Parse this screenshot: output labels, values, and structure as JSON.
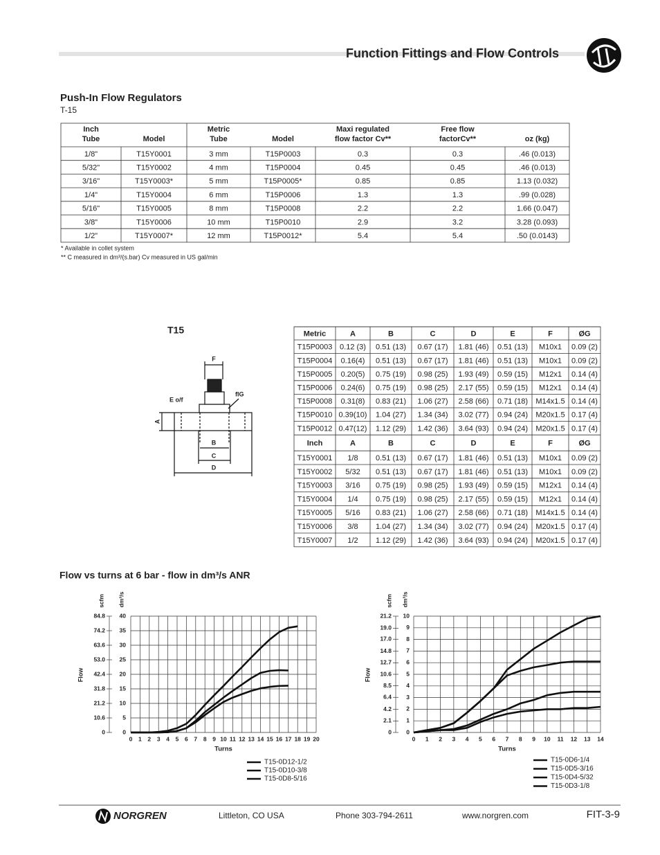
{
  "header": {
    "title": "Function Fittings and Flow Controls"
  },
  "section": {
    "title": "Push-In Flow Regulators",
    "subtitle": "T-15"
  },
  "table1": {
    "header": [
      [
        "Inch",
        "Tube"
      ],
      [
        "Model"
      ],
      [
        "Metric",
        "Tube"
      ],
      [
        "Model"
      ],
      [
        "Maxi regulated",
        "flow factor Cv**"
      ],
      [
        "Free flow",
        "factorCv**"
      ],
      [
        "oz (kg)"
      ]
    ],
    "rows": [
      [
        "1/8\"",
        "T15Y0001",
        "3 mm",
        "T15P0003",
        "0.3",
        "0.3",
        ".46 (0.013)"
      ],
      [
        "5/32\"",
        "T15Y0002",
        "4 mm",
        "T15P0004",
        "0.45",
        "0.45",
        ".46 (0.013)"
      ],
      [
        "3/16\"",
        "T15Y0003*",
        "5 mm",
        "T15P0005*",
        "0.85",
        "0.85",
        "1.13 (0.032)"
      ],
      [
        "1/4\"",
        "T15Y0004",
        "6 mm",
        "T15P0006",
        "1.3",
        "1.3",
        ".99 (0.028)"
      ],
      [
        "5/16\"",
        "T15Y0005",
        "8 mm",
        "T15P0008",
        "2.2",
        "2.2",
        "1.66 (0.047)"
      ],
      [
        "3/8\"",
        "T15Y0006",
        "10 mm",
        "T15P0010",
        "2.9",
        "3.2",
        "3.28 (0.093)"
      ],
      [
        "1/2\"",
        "T15Y0007*",
        "12 mm",
        "T15P0012*",
        "5.4",
        "5.4",
        ".50 (0.0143)"
      ]
    ]
  },
  "notes": [
    "* Available in collet system",
    "** C  measured in dm³/(s.bar) Cv measured in US gal/min"
  ],
  "diagram": {
    "title": "T15",
    "labels": [
      "F",
      "E o/f",
      "fIG",
      "A",
      "B",
      "C",
      "D"
    ]
  },
  "table2": {
    "metric_header": [
      "Metric",
      "A",
      "B",
      "C",
      "D",
      "E",
      "F",
      "ØG"
    ],
    "metric_rows": [
      [
        "T15P0003",
        "0.12 (3)",
        "0.51 (13)",
        "0.67 (17)",
        "1.81 (46)",
        "0.51 (13)",
        "M10x1",
        "0.09 (2)"
      ],
      [
        "T15P0004",
        "0.16(4)",
        "0.51 (13)",
        "0.67 (17)",
        "1.81 (46)",
        "0.51 (13)",
        "M10x1",
        "0.09 (2)"
      ],
      [
        "T15P0005",
        "0.20(5)",
        "0.75 (19)",
        "0.98 (25)",
        "1.93 (49)",
        "0.59 (15)",
        "M12x1",
        "0.14 (4)"
      ],
      [
        "T15P0006",
        "0.24(6)",
        "0.75 (19)",
        "0.98 (25)",
        "2.17 (55)",
        "0.59 (15)",
        "M12x1",
        "0.14 (4)"
      ],
      [
        "T15P0008",
        "0.31(8)",
        "0.83 (21)",
        "1.06 (27)",
        "2.58 (66)",
        "0.71 (18)",
        "M14x1.5",
        "0.14 (4)"
      ],
      [
        "T15P0010",
        "0.39(10)",
        "1.04 (27)",
        "1.34 (34)",
        "3.02 (77)",
        "0.94 (24)",
        "M20x1.5",
        "0.17 (4)"
      ],
      [
        "T15P0012",
        "0.47(12)",
        "1.12 (29)",
        "1.42 (36)",
        "3.64 (93)",
        "0.94 (24)",
        "M20x1.5",
        "0.17 (4)"
      ]
    ],
    "inch_header": [
      "Inch",
      "A",
      "B",
      "C",
      "D",
      "E",
      "F",
      "ØG"
    ],
    "inch_rows": [
      [
        "T15Y0001",
        "1/8",
        "0.51 (13)",
        "0.67 (17)",
        "1.81 (46)",
        "0.51 (13)",
        "M10x1",
        "0.09 (2)"
      ],
      [
        "T15Y0002",
        "5/32",
        "0.51 (13)",
        "0.67 (17)",
        "1.81 (46)",
        "0.51 (13)",
        "M10x1",
        "0.09 (2)"
      ],
      [
        "T15Y0003",
        "3/16",
        "0.75 (19)",
        "0.98 (25)",
        "1.93 (49)",
        "0.59 (15)",
        "M12x1",
        "0.14 (4)"
      ],
      [
        "T15Y0004",
        "1/4",
        "0.75 (19)",
        "0.98 (25)",
        "2.17 (55)",
        "0.59 (15)",
        "M12x1",
        "0.14 (4)"
      ],
      [
        "T15Y0005",
        "5/16",
        "0.83 (21)",
        "1.06 (27)",
        "2.58 (66)",
        "0.71 (18)",
        "M14x1.5",
        "0.14 (4)"
      ],
      [
        "T15Y0006",
        "3/8",
        "1.04 (27)",
        "1.34 (34)",
        "3.02 (77)",
        "0.94 (24)",
        "M20x1.5",
        "0.17 (4)"
      ],
      [
        "T15Y0007",
        "1/2",
        "1.12 (29)",
        "1.42 (36)",
        "3.64 (93)",
        "0.94 (24)",
        "M20x1.5",
        "0.17 (4)"
      ]
    ]
  },
  "charts_title": "Flow vs turns at 6 bar - flow in dm³/s ANR",
  "chart_data": [
    {
      "type": "line",
      "x_label": "Turns",
      "y_label": "Flow",
      "y_units": "dm³/s",
      "y2_units": "scfm",
      "x": [
        0,
        1,
        2,
        3,
        4,
        5,
        6,
        7,
        8,
        9,
        10,
        11,
        12,
        13,
        14,
        15,
        16,
        17,
        18
      ],
      "xlim": [
        0,
        20
      ],
      "xticks": [
        0,
        1,
        2,
        3,
        4,
        5,
        6,
        7,
        8,
        9,
        10,
        11,
        12,
        13,
        14,
        15,
        16,
        17,
        18,
        19,
        20
      ],
      "ylim": [
        0,
        40
      ],
      "yticks": [
        0,
        5,
        10,
        15,
        20,
        25,
        30,
        35,
        40
      ],
      "y2lim": [
        0,
        84.8
      ],
      "y2ticks": [
        0,
        10.6,
        21.2,
        31.8,
        42.4,
        {
          "value": 53,
          "label": "53.0"
        },
        63.6,
        74.2,
        84.8
      ],
      "grid": true,
      "series": [
        {
          "name": "T15-0D12-1/2",
          "color": "#111111",
          "values": [
            0,
            0,
            0,
            0.2,
            0.6,
            1.5,
            3,
            6,
            9.5,
            12.8,
            16,
            19.3,
            22.5,
            25.8,
            29,
            32,
            34.5,
            36,
            36.5
          ]
        },
        {
          "name": "T15-0D10-3/8",
          "color": "#111111",
          "values": [
            0,
            0,
            0,
            0,
            0.1,
            0.5,
            1.5,
            4,
            7,
            9.5,
            12,
            14.3,
            16.5,
            18.7,
            20.5,
            21.2,
            21.4,
            21.3,
            null
          ]
        },
        {
          "name": "T15-0D8-5/16",
          "color": "#111111",
          "values": [
            0,
            0,
            0,
            0,
            0.1,
            0.5,
            1.5,
            3.5,
            6,
            8.3,
            10.5,
            12,
            13.2,
            14.3,
            15.2,
            15.7,
            16,
            16.1,
            null
          ]
        }
      ]
    },
    {
      "type": "line",
      "x_label": "Turns",
      "y_label": "Flow",
      "y_units": "dm³/s",
      "y2_units": "scfm",
      "x": [
        0,
        1,
        2,
        3,
        4,
        5,
        6,
        7,
        8,
        9,
        10,
        11,
        12,
        13,
        14
      ],
      "xlim": [
        0,
        14
      ],
      "xticks": [
        0,
        1,
        2,
        3,
        4,
        5,
        6,
        7,
        8,
        9,
        10,
        11,
        12,
        13,
        14
      ],
      "ylim": [
        0,
        10
      ],
      "yticks": [
        0,
        1,
        2,
        3,
        4,
        5,
        6,
        7,
        8,
        9,
        10
      ],
      "y2lim": [
        0,
        21.2
      ],
      "y2ticks": [
        0,
        2.1,
        4.2,
        6.4,
        8.5,
        10.6,
        12.7,
        14.8,
        {
          "value": 17,
          "label": "17.0"
        },
        {
          "value": 19,
          "label": "19.0"
        },
        21.2
      ],
      "grid": true,
      "series": [
        {
          "name": "T15-0D6-1/4",
          "color": "#111111",
          "values": [
            0,
            0.2,
            0.4,
            0.8,
            1.7,
            2.7,
            3.8,
            5.4,
            6.3,
            7.2,
            7.9,
            8.6,
            9.2,
            9.8,
            10
          ]
        },
        {
          "name": "T15-0D5-3/16",
          "color": "#111111",
          "values": [
            0,
            0.2,
            0.4,
            0.8,
            1.7,
            2.7,
            3.8,
            4.9,
            5.3,
            5.6,
            5.8,
            6,
            6.1,
            6.1,
            6.1
          ]
        },
        {
          "name": "T15-0D4-5/32",
          "color": "#111111",
          "values": [
            0,
            0.1,
            0.2,
            0.3,
            0.6,
            1.1,
            1.6,
            2,
            2.5,
            2.8,
            3.2,
            3.4,
            3.5,
            3.5,
            3.5
          ]
        },
        {
          "name": "T15-0D3-1/8",
          "color": "#111111",
          "values": [
            0,
            0.1,
            0.2,
            0.2,
            0.4,
            0.9,
            1.3,
            1.6,
            1.8,
            1.9,
            2,
            2,
            2.1,
            2.1,
            2.2
          ]
        }
      ]
    }
  ],
  "footer": {
    "brand": "NORGREN",
    "location": "Littleton,  CO  USA",
    "phone": "Phone 303-794-2611",
    "web": "www.norgren.com",
    "page": "FIT-3-9"
  }
}
